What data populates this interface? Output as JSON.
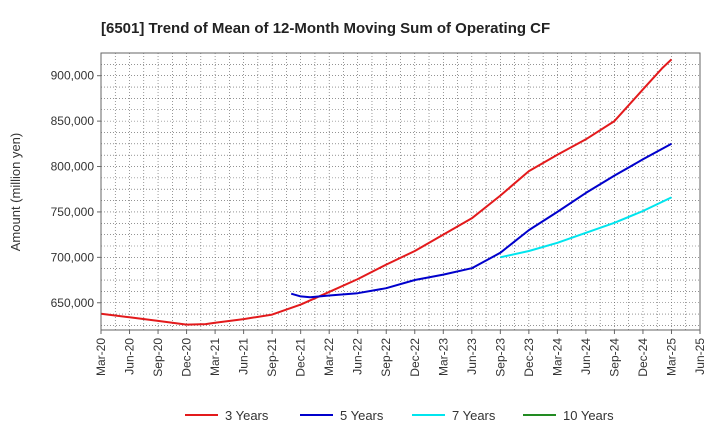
{
  "chart_data": {
    "type": "line",
    "title": "[6501]  Trend of Mean of 12-Month Moving Sum of Operating CF",
    "xlabel": "",
    "ylabel": "Amount (million yen)",
    "ylim": [
      620000,
      925000
    ],
    "y_ticks": [
      650000,
      700000,
      750000,
      800000,
      850000,
      900000
    ],
    "y_tick_labels": [
      "650,000",
      "700,000",
      "750,000",
      "800,000",
      "850,000",
      "900,000"
    ],
    "x_tick_labels": [
      "Mar-20",
      "Jun-20",
      "Sep-20",
      "Dec-20",
      "Mar-21",
      "Jun-21",
      "Sep-21",
      "Dec-21",
      "Mar-22",
      "Jun-22",
      "Sep-22",
      "Dec-22",
      "Mar-23",
      "Jun-23",
      "Sep-23",
      "Dec-23",
      "Mar-24",
      "Jun-24",
      "Sep-24",
      "Dec-24",
      "Mar-25",
      "Jun-25"
    ],
    "x_index_note": "x values are month indices starting at Mar-20 = 0",
    "xlim": [
      0,
      63
    ],
    "grid": true,
    "legend_position": "bottom",
    "series": [
      {
        "name": "3 Years",
        "color": "#e31a1c",
        "x": [
          0,
          3,
          6,
          9,
          11,
          12,
          15,
          18,
          21,
          24,
          27,
          30,
          33,
          36,
          39,
          42,
          45,
          48,
          51,
          54,
          57,
          59,
          60
        ],
        "values": [
          638000,
          634000,
          630000,
          626000,
          626500,
          628000,
          632000,
          637000,
          648000,
          662000,
          676000,
          692000,
          707000,
          725000,
          743000,
          768000,
          795000,
          813000,
          830000,
          850000,
          885000,
          908000,
          918000
        ]
      },
      {
        "name": "5 Years",
        "color": "#0000cc",
        "x": [
          20,
          21,
          22,
          24,
          27,
          30,
          33,
          36,
          39,
          42,
          45,
          48,
          51,
          54,
          57,
          60
        ],
        "values": [
          660000,
          657000,
          656000,
          658000,
          660500,
          666000,
          675000,
          681000,
          688000,
          705000,
          730000,
          750000,
          771000,
          790000,
          808000,
          825000
        ]
      },
      {
        "name": "7 Years",
        "color": "#00e5ee",
        "x": [
          42,
          45,
          48,
          51,
          54,
          57,
          60
        ],
        "values": [
          700000,
          707000,
          716000,
          727000,
          738000,
          751000,
          766000
        ]
      },
      {
        "name": "10 Years",
        "color": "#228b22",
        "x": [],
        "values": []
      }
    ]
  }
}
